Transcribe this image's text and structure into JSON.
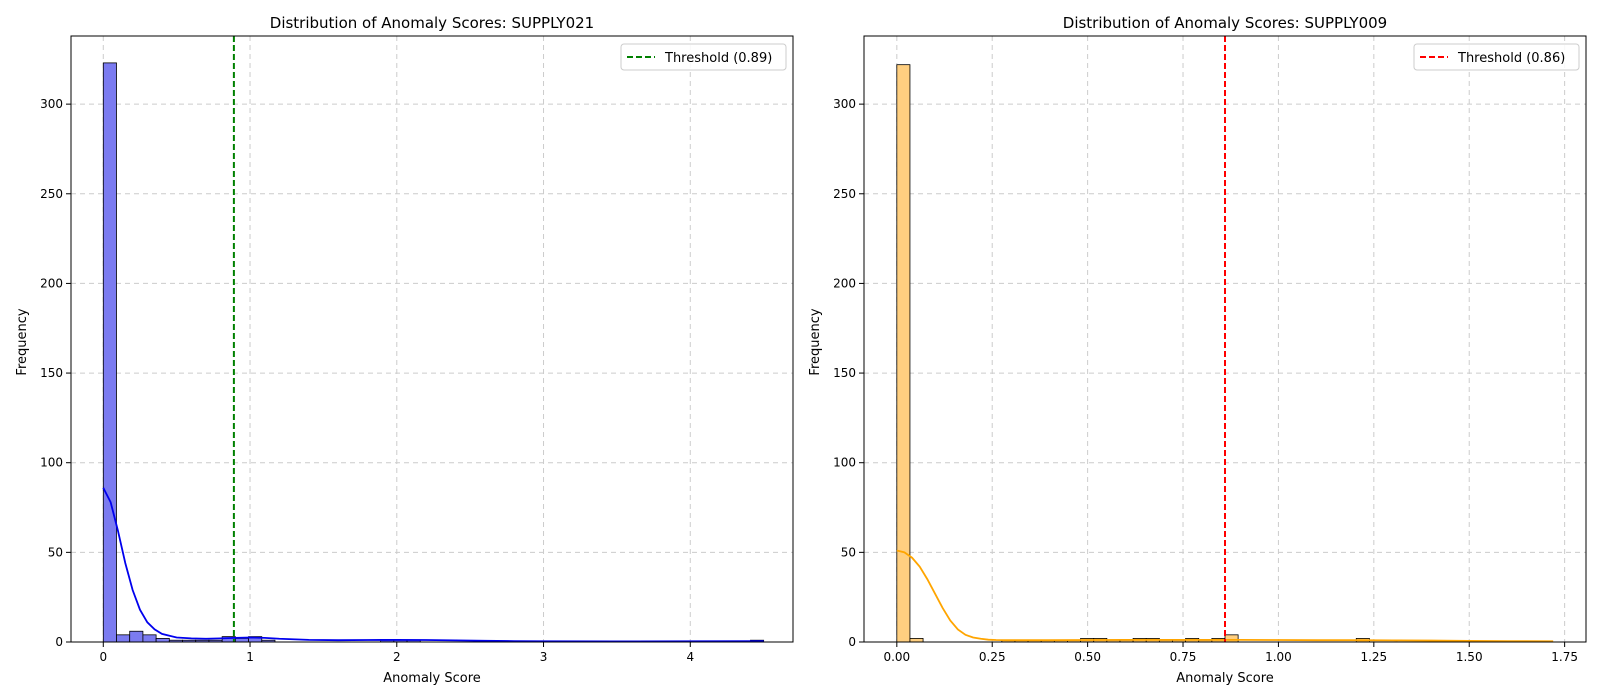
{
  "chart_data": [
    {
      "type": "histogram",
      "title": "Distribution of Anomaly Scores: SUPPLY021",
      "xlabel": "Anomaly Score",
      "ylabel": "Frequency",
      "xlim": [
        -0.22,
        4.7
      ],
      "ylim": [
        0,
        338
      ],
      "xticks": [
        0,
        1,
        2,
        3,
        4
      ],
      "xtick_labels": [
        "0",
        "1",
        "2",
        "3",
        "4"
      ],
      "yticks": [
        0,
        50,
        100,
        150,
        200,
        250,
        300
      ],
      "ytick_labels": [
        "0",
        "50",
        "100",
        "150",
        "200",
        "250",
        "300"
      ],
      "grid": true,
      "legend_position": "top-right",
      "bar_color": "#7b7bf0",
      "bar_edge_color": "#000000",
      "bin_edges": [
        0,
        0.09,
        0.18,
        0.27,
        0.36,
        0.45,
        0.54,
        0.63,
        0.72,
        0.81,
        0.9,
        0.99,
        1.08,
        1.17,
        1.26,
        1.35,
        1.44,
        1.53,
        1.62,
        1.71,
        1.8,
        1.89,
        1.98,
        2.07,
        2.16,
        2.25,
        2.34,
        2.43,
        2.52,
        2.61,
        2.7,
        2.79,
        2.88,
        2.97,
        3.06,
        3.15,
        3.24,
        3.33,
        3.42,
        3.51,
        3.6,
        3.69,
        3.78,
        3.87,
        3.96,
        4.05,
        4.14,
        4.23,
        4.32,
        4.41,
        4.5
      ],
      "counts": [
        323,
        4,
        6,
        4,
        2,
        1,
        1,
        1,
        1,
        3,
        2,
        3,
        1,
        0,
        0,
        0,
        0,
        0,
        0,
        0,
        0,
        1,
        1,
        1,
        0,
        0,
        0,
        0,
        0,
        0,
        0,
        0,
        0,
        0,
        0,
        0,
        0,
        0,
        0,
        0,
        0,
        0,
        0,
        0,
        0,
        0,
        0,
        0,
        0,
        1
      ],
      "kde": {
        "color": "#0000ee",
        "x": [
          0,
          0.05,
          0.1,
          0.15,
          0.2,
          0.25,
          0.3,
          0.35,
          0.4,
          0.5,
          0.6,
          0.7,
          0.8,
          0.9,
          1.0,
          1.1,
          1.2,
          1.4,
          1.6,
          1.8,
          2.0,
          2.2,
          2.4,
          2.6,
          2.8,
          3.0,
          3.5,
          4.0,
          4.5
        ],
        "y": [
          86,
          78,
          62,
          44,
          29,
          18,
          11,
          7,
          4.5,
          2.5,
          2,
          1.8,
          2,
          2.3,
          2.5,
          2.3,
          1.8,
          1.2,
          1,
          1.1,
          1.2,
          1.1,
          0.9,
          0.7,
          0.5,
          0.4,
          0.3,
          0.4,
          0.5
        ]
      },
      "threshold": {
        "value": 0.89,
        "color": "#008000",
        "label": "Threshold (0.89)"
      }
    },
    {
      "type": "histogram",
      "title": "Distribution of Anomaly Scores: SUPPLY009",
      "xlabel": "Anomaly Score",
      "ylabel": "Frequency",
      "xlim": [
        -0.086,
        1.806
      ],
      "ylim": [
        0,
        338
      ],
      "xticks": [
        0,
        0.25,
        0.5,
        0.75,
        1.0,
        1.25,
        1.5,
        1.75
      ],
      "xtick_labels": [
        "0.00",
        "0.25",
        "0.50",
        "0.75",
        "1.00",
        "1.25",
        "1.50",
        "1.75"
      ],
      "yticks": [
        0,
        50,
        100,
        150,
        200,
        250,
        300
      ],
      "ytick_labels": [
        "0",
        "50",
        "100",
        "150",
        "200",
        "250",
        "300"
      ],
      "grid": true,
      "legend_position": "top-right",
      "bar_color": "#ffcf80",
      "bar_edge_color": "#000000",
      "bin_edges": [
        0,
        0.0344,
        0.0688,
        0.1032,
        0.1376,
        0.172,
        0.2064,
        0.2408,
        0.2752,
        0.3096,
        0.344,
        0.3784,
        0.4128,
        0.4472,
        0.4816,
        0.516,
        0.5504,
        0.5848,
        0.6192,
        0.6536,
        0.688,
        0.7224,
        0.7568,
        0.7912,
        0.8256,
        0.86,
        0.8944,
        0.9288,
        0.9632,
        0.9976,
        1.032,
        1.0664,
        1.1008,
        1.1352,
        1.1696,
        1.204,
        1.2384,
        1.2728,
        1.3072,
        1.3416,
        1.376,
        1.4104,
        1.4448,
        1.4792,
        1.5136,
        1.548,
        1.5824,
        1.6168,
        1.6512,
        1.6856,
        1.72
      ],
      "counts": [
        322,
        2,
        0,
        0,
        0,
        0,
        0,
        0,
        1,
        1,
        1,
        1,
        1,
        1,
        2,
        2,
        1,
        1,
        2,
        2,
        1,
        1,
        2,
        1,
        2,
        4,
        0,
        0,
        0,
        0,
        0,
        0,
        0,
        0,
        0,
        2,
        0,
        0,
        0,
        0,
        0,
        0,
        0,
        0,
        0,
        0,
        0,
        0,
        0,
        0
      ],
      "kde": {
        "color": "#ffa500",
        "x": [
          0,
          0.02,
          0.04,
          0.06,
          0.08,
          0.1,
          0.12,
          0.14,
          0.16,
          0.18,
          0.2,
          0.22,
          0.24,
          0.26,
          0.3,
          0.4,
          0.5,
          0.6,
          0.7,
          0.8,
          0.9,
          1.0,
          1.1,
          1.2,
          1.3,
          1.4,
          1.5,
          1.6,
          1.72
        ],
        "y": [
          51,
          50,
          47,
          42,
          35,
          27,
          19,
          12,
          7,
          4,
          2.5,
          1.8,
          1.3,
          1.1,
          1,
          1,
          1.1,
          1.2,
          1.2,
          1.2,
          1.2,
          1.1,
          1,
          1,
          0.9,
          0.8,
          0.6,
          0.5,
          0.4
        ]
      },
      "threshold": {
        "value": 0.86,
        "color": "#ff0000",
        "label": "Threshold (0.86)"
      }
    }
  ]
}
